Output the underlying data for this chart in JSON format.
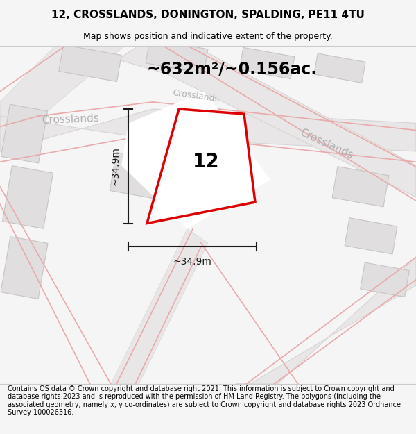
{
  "title": "12, CROSSLANDS, DONINGTON, SPALDING, PE11 4TU",
  "subtitle": "Map shows position and indicative extent of the property.",
  "area_label": "~632m²/~0.156ac.",
  "width_label": "~34.9m",
  "height_label": "~34.9m",
  "number_label": "12",
  "footer": "Contains OS data © Crown copyright and database right 2021. This information is subject to Crown copyright and database rights 2023 and is reproduced with the permission of HM Land Registry. The polygons (including the associated geometry, namely x, y co-ordinates) are subject to Crown copyright and database rights 2023 Ordnance Survey 100026316.",
  "bg_color": "#f5f5f5",
  "map_bg": "#f2f0f0",
  "road_fill": "#e8e6e6",
  "road_edge": "#d8d4d4",
  "building_color": "#e0dede",
  "building_stroke": "#c8c4c4",
  "pink": "#e8aaaa",
  "red_poly_color": "#dd0000",
  "dim_color": "#1a1a1a",
  "street_color": "#b0aeae",
  "title_fontsize": 11,
  "subtitle_fontsize": 9,
  "footer_fontsize": 7.0,
  "area_label_fontsize": 17,
  "dim_fontsize": 10,
  "street_fontsize": 11,
  "number_fontsize": 20
}
